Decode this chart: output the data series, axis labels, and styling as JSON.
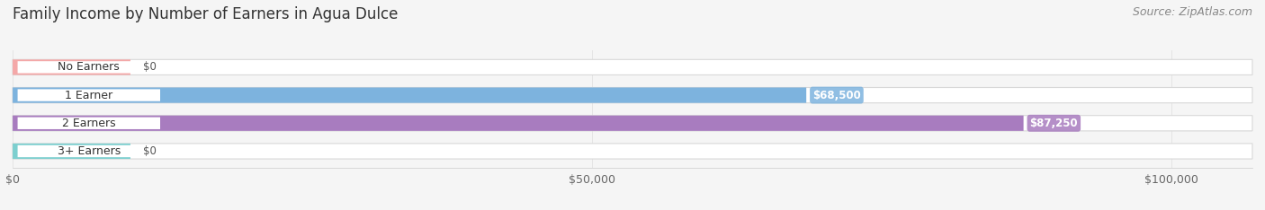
{
  "title": "Family Income by Number of Earners in Agua Dulce",
  "source_text": "Source: ZipAtlas.com",
  "categories": [
    "No Earners",
    "1 Earner",
    "2 Earners",
    "3+ Earners"
  ],
  "values": [
    0,
    68500,
    87250,
    0
  ],
  "bar_colors": [
    "#f4a8a8",
    "#7db3de",
    "#a87cbf",
    "#7dcfcf"
  ],
  "value_labels": [
    "$0",
    "$68,500",
    "$87,250",
    "$0"
  ],
  "x_ticks": [
    0,
    50000,
    100000
  ],
  "x_tick_labels": [
    "$0",
    "$50,000",
    "$100,000"
  ],
  "xlim_max": 107000,
  "background_color": "#f5f5f5",
  "title_fontsize": 12,
  "source_fontsize": 9,
  "category_fontsize": 9,
  "value_fontsize": 8.5,
  "tick_fontsize": 9
}
